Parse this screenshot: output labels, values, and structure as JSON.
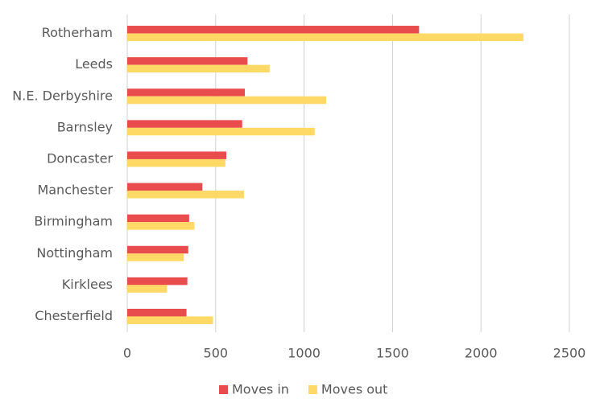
{
  "chart_data": {
    "type": "hbar",
    "categories": [
      "Rotherham",
      "Leeds",
      "N.E. Derbyshire",
      "Barnsley",
      "Doncaster",
      "Manchester",
      "Birmingham",
      "Nottingham",
      "Kirklees",
      "Chesterfield"
    ],
    "series": [
      {
        "name": "Moves in",
        "color": "#e84c4c",
        "values": [
          1650,
          680,
          665,
          650,
          560,
          425,
          350,
          345,
          340,
          335
        ]
      },
      {
        "name": "Moves out",
        "color": "#ffd966",
        "values": [
          2240,
          805,
          1125,
          1060,
          555,
          660,
          380,
          320,
          225,
          485
        ]
      }
    ],
    "xlim": [
      0,
      2500
    ],
    "xticks": [
      0,
      500,
      1000,
      1500,
      2000,
      2500
    ],
    "grid": true,
    "legend": "bottom"
  }
}
